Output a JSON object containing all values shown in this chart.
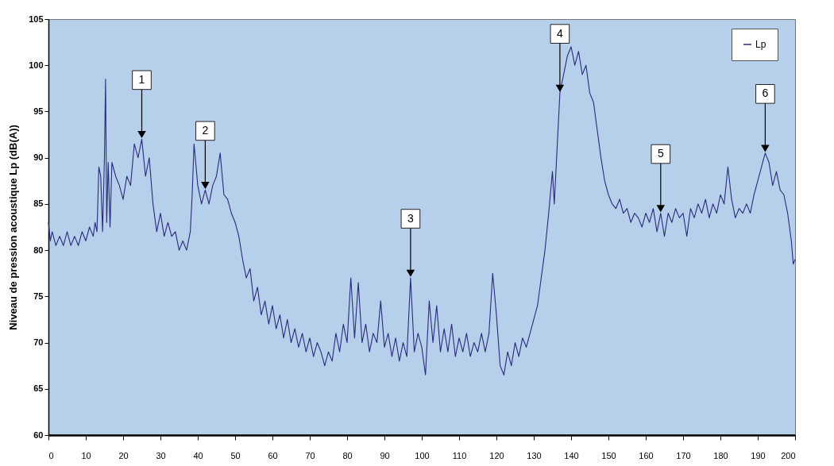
{
  "chart_data": {
    "type": "line",
    "ylabel": "Niveau de pression acoustique Lp (dB(A))",
    "x": [
      0,
      0.5,
      1,
      2,
      3,
      4,
      5,
      6,
      7,
      8,
      9,
      10,
      11,
      12,
      12.5,
      13,
      13.5,
      14,
      14.5,
      15,
      15.3,
      15.6,
      16,
      16.5,
      17,
      18,
      19,
      20,
      21,
      22,
      23,
      24,
      25,
      26,
      27,
      28,
      29,
      30,
      31,
      32,
      33,
      34,
      35,
      36,
      37,
      38,
      38.5,
      39,
      40,
      41,
      42,
      43,
      44,
      45,
      46,
      47,
      48,
      49,
      50,
      51,
      52,
      53,
      54,
      55,
      56,
      57,
      58,
      59,
      60,
      61,
      62,
      63,
      64,
      65,
      66,
      67,
      68,
      69,
      70,
      71,
      72,
      73,
      74,
      75,
      76,
      77,
      78,
      79,
      80,
      81,
      82,
      83,
      84,
      85,
      86,
      87,
      88,
      89,
      90,
      91,
      92,
      93,
      94,
      95,
      96,
      97,
      98,
      99,
      100,
      101,
      102,
      103,
      104,
      105,
      106,
      107,
      108,
      109,
      110,
      111,
      112,
      113,
      114,
      115,
      116,
      117,
      118,
      119,
      120,
      121,
      122,
      123,
      124,
      125,
      126,
      127,
      128,
      129,
      130,
      131,
      132,
      133,
      134,
      135,
      135.5,
      136,
      137,
      138,
      139,
      140,
      141,
      142,
      143,
      144,
      145,
      146,
      147,
      148,
      149,
      150,
      151,
      152,
      153,
      154,
      155,
      156,
      157,
      158,
      159,
      160,
      161,
      162,
      163,
      164,
      165,
      166,
      167,
      168,
      169,
      170,
      171,
      172,
      173,
      174,
      175,
      176,
      177,
      178,
      179,
      180,
      181,
      182,
      183,
      184,
      185,
      186,
      187,
      188,
      189,
      190,
      191,
      192,
      193,
      194,
      195,
      196,
      197,
      198,
      199,
      199.5,
      200
    ],
    "series": [
      {
        "name": "Lp",
        "color": "#2b2b7c",
        "values": [
          83,
          81,
          82,
          80.5,
          81.5,
          80.5,
          82,
          80.5,
          81.5,
          80.5,
          82,
          81,
          82.5,
          81.5,
          83,
          82,
          89,
          88,
          82,
          90,
          98.5,
          83,
          89.5,
          82.5,
          89.5,
          88,
          87,
          85.5,
          88,
          87,
          91.5,
          90,
          92,
          88,
          90,
          85,
          82,
          84,
          81.5,
          83,
          81.5,
          82,
          80,
          81,
          80,
          82,
          86,
          91.5,
          87,
          85,
          86.5,
          85,
          87,
          88,
          90.5,
          86,
          85.5,
          84,
          83,
          81.5,
          79,
          77,
          78,
          74.5,
          76,
          73,
          74.5,
          72,
          74,
          71.5,
          73,
          70.5,
          72.5,
          70,
          71.5,
          69.5,
          71,
          69,
          70.5,
          68.5,
          70,
          69,
          67.5,
          69,
          68,
          71,
          69,
          72,
          70,
          77,
          70.5,
          76.5,
          70,
          72,
          69,
          71,
          70,
          74.5,
          69.5,
          71,
          68.5,
          70.5,
          68,
          70,
          68.5,
          77,
          69,
          71,
          69.5,
          66.5,
          74.5,
          70,
          74,
          69,
          71.5,
          69,
          72,
          68.5,
          70.5,
          69,
          71,
          68.5,
          70,
          69,
          71,
          69,
          71,
          77.5,
          73,
          67.5,
          66.5,
          69,
          67.5,
          70,
          68.5,
          70.5,
          69.5,
          71,
          72.5,
          74,
          77,
          80,
          84,
          88.5,
          85,
          89,
          97,
          99,
          101,
          102,
          100,
          101.5,
          99,
          100,
          97,
          96,
          93,
          90,
          87.5,
          86,
          85,
          84.5,
          85.5,
          84,
          84.5,
          83,
          84,
          83.5,
          82.5,
          84,
          83,
          84.5,
          82,
          84,
          81.5,
          84,
          83,
          84.5,
          83.5,
          84,
          81.5,
          84.5,
          83.5,
          85,
          84,
          85.5,
          83.5,
          85,
          84,
          86,
          85,
          89,
          85.5,
          83.5,
          84.5,
          84,
          85,
          84,
          86,
          87.5,
          89,
          90.5,
          89.5,
          87,
          88.5,
          86.5,
          86,
          84,
          81,
          78.5,
          79
        ]
      }
    ],
    "xlim": [
      0,
      200
    ],
    "xticks": [
      0,
      10,
      20,
      30,
      40,
      50,
      60,
      70,
      80,
      90,
      100,
      110,
      120,
      130,
      140,
      150,
      160,
      170,
      180,
      190,
      200
    ],
    "ylim": [
      60,
      105
    ],
    "yticks": [
      60,
      65,
      70,
      75,
      80,
      85,
      90,
      95,
      100,
      105
    ],
    "grid": false,
    "legend": "top right",
    "marker": "none",
    "line_style": "solid",
    "annotations": [
      {
        "text": "1",
        "x": 25,
        "y": 92
      },
      {
        "text": "2",
        "x": 42,
        "y": 86.5
      },
      {
        "text": "3",
        "x": 97,
        "y": 77
      },
      {
        "text": "4",
        "x": 137,
        "y": 97
      },
      {
        "text": "5",
        "x": 164,
        "y": 84
      },
      {
        "text": "6",
        "x": 192,
        "y": 90.5
      }
    ]
  }
}
